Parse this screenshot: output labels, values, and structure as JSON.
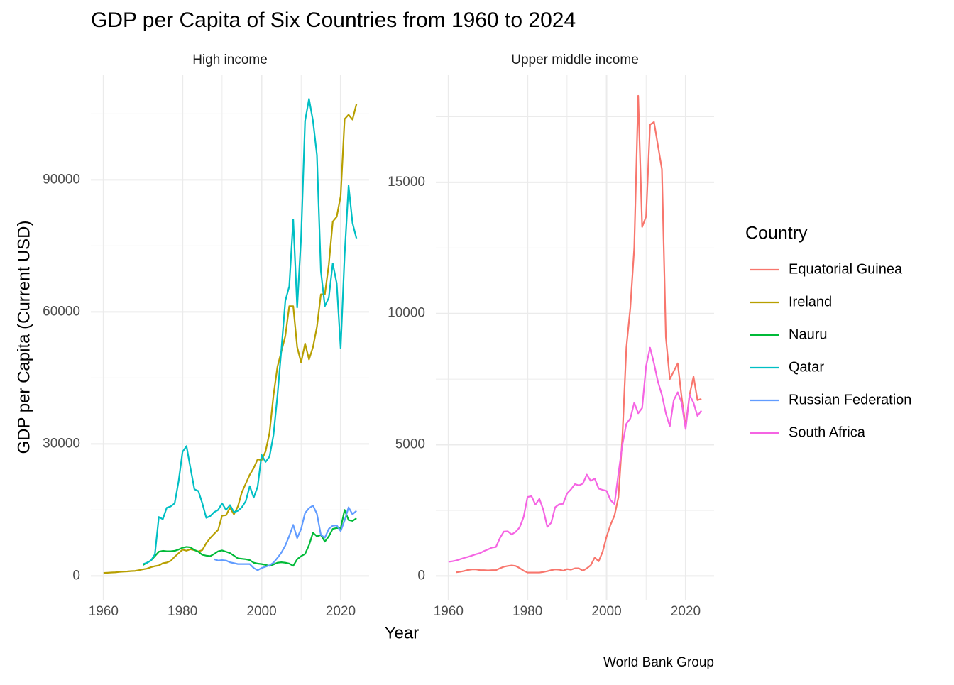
{
  "title": "GDP per Capita of Six Countries from 1960 to 2024",
  "x_label": "Year",
  "y_label": "GDP per Capita (Current USD)",
  "caption": "World Bank Group",
  "legend_title": "Country",
  "chart_data": [
    {
      "type": "line",
      "title": "High income",
      "x": [
        1960,
        1961,
        1962,
        1963,
        1964,
        1965,
        1966,
        1967,
        1968,
        1969,
        1970,
        1971,
        1972,
        1973,
        1974,
        1975,
        1976,
        1977,
        1978,
        1979,
        1980,
        1981,
        1982,
        1983,
        1984,
        1985,
        1986,
        1987,
        1988,
        1989,
        1990,
        1991,
        1992,
        1993,
        1994,
        1995,
        1996,
        1997,
        1998,
        1999,
        2000,
        2001,
        2002,
        2003,
        2004,
        2005,
        2006,
        2007,
        2008,
        2009,
        2010,
        2011,
        2012,
        2013,
        2014,
        2015,
        2016,
        2017,
        2018,
        2019,
        2020,
        2021,
        2022,
        2023,
        2024
      ],
      "series": [
        {
          "name": "Ireland",
          "color": "#B79F00",
          "values": [
            690,
            730,
            780,
            830,
            920,
            980,
            1030,
            1110,
            1150,
            1320,
            1500,
            1660,
            1990,
            2220,
            2380,
            2880,
            3040,
            3420,
            4350,
            5180,
            5980,
            5740,
            6050,
            5850,
            5560,
            5870,
            7450,
            8620,
            9570,
            10460,
            13700,
            13800,
            15500,
            14000,
            15800,
            19000,
            21000,
            23000,
            24500,
            26500,
            26300,
            28300,
            32500,
            41000,
            47500,
            51000,
            54500,
            61300,
            61300,
            52000,
            48500,
            52800,
            49200,
            52000,
            56600,
            64000,
            64000,
            70700,
            80500,
            81600,
            86300,
            103800,
            104800,
            103700,
            107200
          ]
        },
        {
          "name": "Nauru",
          "color": "#00BA38",
          "values": [
            null,
            null,
            null,
            null,
            null,
            null,
            null,
            null,
            null,
            null,
            2500,
            3000,
            3500,
            4500,
            5500,
            5700,
            5600,
            5600,
            5700,
            6000,
            6400,
            6600,
            6500,
            5900,
            5500,
            4800,
            4600,
            4500,
            5000,
            5600,
            5800,
            5500,
            5200,
            4600,
            4000,
            3900,
            3800,
            3600,
            3000,
            2800,
            2700,
            2500,
            2300,
            2600,
            3000,
            3100,
            3000,
            2800,
            2300,
            3800,
            4500,
            5000,
            7000,
            9800,
            9000,
            9300,
            7800,
            9000,
            10700,
            10900,
            10800,
            15000,
            12700,
            12500,
            13100
          ]
        },
        {
          "name": "Qatar",
          "color": "#00BFC4",
          "values": [
            null,
            null,
            null,
            null,
            null,
            null,
            null,
            null,
            null,
            null,
            2700,
            3000,
            3500,
            4900,
            13400,
            12900,
            15500,
            15800,
            16500,
            21500,
            28200,
            29500,
            24500,
            19700,
            19300,
            16500,
            13200,
            13600,
            14500,
            15000,
            16500,
            15000,
            16100,
            14500,
            14800,
            15600,
            17000,
            20400,
            17800,
            20300,
            27500,
            25900,
            27100,
            32000,
            40900,
            51400,
            62500,
            65800,
            81000,
            61000,
            77000,
            103400,
            108400,
            103400,
            95600,
            69200,
            61300,
            63200,
            71000,
            66500,
            51700,
            72900,
            88700,
            80200,
            76700
          ]
        },
        {
          "name": "Russian Federation",
          "color": "#619CFF",
          "values": [
            null,
            null,
            null,
            null,
            null,
            null,
            null,
            null,
            null,
            null,
            null,
            null,
            null,
            null,
            null,
            null,
            null,
            null,
            null,
            null,
            null,
            null,
            null,
            null,
            null,
            null,
            null,
            null,
            3800,
            3500,
            3600,
            3500,
            3100,
            2900,
            2700,
            2700,
            2700,
            2700,
            1800,
            1300,
            1800,
            2100,
            2400,
            3000,
            4100,
            5300,
            6900,
            9100,
            11600,
            8600,
            10700,
            14300,
            15400,
            16000,
            14100,
            9300,
            8700,
            10700,
            11400,
            11500,
            10200,
            12600,
            15600,
            14000,
            14800
          ]
        }
      ],
      "xlim": [
        1956.8,
        2027.2
      ],
      "xticks": [
        1960,
        1980,
        2000,
        2020
      ],
      "ylim": [
        -5425,
        113925
      ],
      "yticks": [
        0,
        30000,
        60000,
        90000
      ],
      "grid": true
    },
    {
      "type": "line",
      "title": "Upper middle income",
      "x": [
        1960,
        1961,
        1962,
        1963,
        1964,
        1965,
        1966,
        1967,
        1968,
        1969,
        1970,
        1971,
        1972,
        1973,
        1974,
        1975,
        1976,
        1977,
        1978,
        1979,
        1980,
        1981,
        1982,
        1983,
        1984,
        1985,
        1986,
        1987,
        1988,
        1989,
        1990,
        1991,
        1992,
        1993,
        1994,
        1995,
        1996,
        1997,
        1998,
        1999,
        2000,
        2001,
        2002,
        2003,
        2004,
        2005,
        2006,
        2007,
        2008,
        2009,
        2010,
        2011,
        2012,
        2013,
        2014,
        2015,
        2016,
        2017,
        2018,
        2019,
        2020,
        2021,
        2022,
        2023,
        2024
      ],
      "series": [
        {
          "name": "Equatorial Guinea",
          "color": "#F8766D",
          "values": [
            null,
            null,
            140,
            160,
            190,
            230,
            250,
            250,
            220,
            220,
            210,
            220,
            220,
            290,
            350,
            380,
            400,
            380,
            300,
            200,
            130,
            130,
            130,
            130,
            150,
            180,
            220,
            250,
            240,
            200,
            260,
            240,
            290,
            290,
            200,
            290,
            410,
            700,
            560,
            920,
            1500,
            1950,
            2300,
            3000,
            5300,
            8700,
            10200,
            12500,
            18300,
            13300,
            13700,
            17200,
            17300,
            16400,
            15500,
            9100,
            7500,
            7800,
            8100,
            6800,
            5700,
            6900,
            7600,
            6700,
            6750
          ]
        },
        {
          "name": "South Africa",
          "color": "#F564E3",
          "values": [
            540,
            560,
            590,
            640,
            690,
            730,
            780,
            830,
            870,
            950,
            1010,
            1080,
            1100,
            1440,
            1690,
            1700,
            1580,
            1680,
            1850,
            2240,
            3010,
            3040,
            2720,
            2940,
            2520,
            1870,
            2030,
            2620,
            2730,
            2750,
            3140,
            3300,
            3500,
            3450,
            3520,
            3860,
            3620,
            3710,
            3330,
            3280,
            3240,
            2890,
            2740,
            3900,
            5000,
            5800,
            6000,
            6600,
            6200,
            6400,
            8000,
            8700,
            8100,
            7400,
            6900,
            6200,
            5700,
            6700,
            7000,
            6600,
            5600,
            6900,
            6600,
            6100,
            6300
          ]
        }
      ],
      "xlim": [
        1956.8,
        2027.2
      ],
      "xticks": [
        1960,
        1980,
        2000,
        2020
      ],
      "ylim": [
        -910,
        19110
      ],
      "yticks": [
        0,
        5000,
        10000,
        15000
      ],
      "grid": true
    }
  ]
}
